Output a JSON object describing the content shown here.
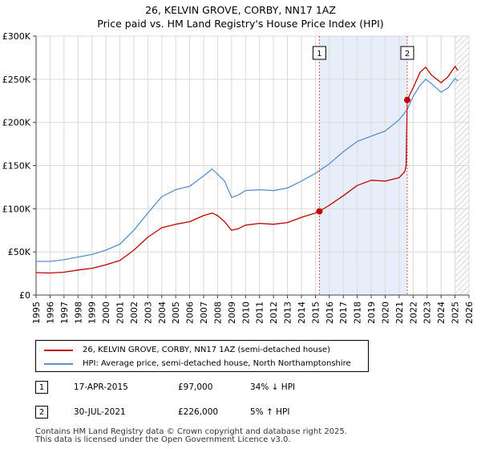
{
  "header": {
    "title_line1": "26, KELVIN GROVE, CORBY, NN17 1AZ",
    "title_line2": "Price paid vs. HM Land Registry's House Price Index (HPI)"
  },
  "colors": {
    "price_line": "#c00000",
    "hpi_line": "#5b8fd0",
    "shade": "#e8eef9",
    "marker_line": "#d9534f",
    "hatch": "#bdbdbd"
  },
  "chart_data": {
    "type": "line",
    "title": "Price paid vs. HM Land Registry's House Price Index (HPI)",
    "xlabel": "",
    "ylabel": "",
    "xlim": [
      1995,
      2026
    ],
    "ylim": [
      0,
      300000
    ],
    "x_ticks": [
      1995,
      1996,
      1997,
      1998,
      1999,
      2000,
      2001,
      2002,
      2003,
      2004,
      2005,
      2006,
      2007,
      2008,
      2009,
      2010,
      2011,
      2012,
      2013,
      2014,
      2015,
      2016,
      2017,
      2018,
      2019,
      2020,
      2021,
      2022,
      2023,
      2024,
      2025,
      2026
    ],
    "y_ticks": [
      0,
      50000,
      100000,
      150000,
      200000,
      250000,
      300000
    ],
    "y_tick_labels": [
      "£0",
      "£50K",
      "£100K",
      "£150K",
      "£200K",
      "£250K",
      "£300K"
    ],
    "grid": true,
    "shaded_span": [
      2015.29,
      2021.58
    ],
    "hatched_from": 2025.0,
    "series": [
      {
        "name": "26, KELVIN GROVE, CORBY, NN17 1AZ (semi-detached house)",
        "color": "#c00000",
        "points": [
          [
            1995,
            26000
          ],
          [
            1996,
            25500
          ],
          [
            1997,
            26500
          ],
          [
            1998,
            29000
          ],
          [
            1999,
            31000
          ],
          [
            2000,
            35000
          ],
          [
            2001,
            40000
          ],
          [
            2002,
            52000
          ],
          [
            2003,
            67000
          ],
          [
            2004,
            78000
          ],
          [
            2005,
            82000
          ],
          [
            2006,
            85000
          ],
          [
            2007,
            92000
          ],
          [
            2007.6,
            95000
          ],
          [
            2008,
            92000
          ],
          [
            2008.5,
            85000
          ],
          [
            2009,
            75000
          ],
          [
            2009.5,
            77000
          ],
          [
            2010,
            81000
          ],
          [
            2011,
            83000
          ],
          [
            2012,
            82000
          ],
          [
            2013,
            84000
          ],
          [
            2014,
            90000
          ],
          [
            2015,
            95000
          ],
          [
            2015.29,
            97000
          ],
          [
            2016,
            104000
          ],
          [
            2017,
            115000
          ],
          [
            2018,
            127000
          ],
          [
            2019,
            133000
          ],
          [
            2020,
            132000
          ],
          [
            2021,
            136000
          ],
          [
            2021.4,
            143000
          ],
          [
            2021.5,
            150000
          ],
          [
            2021.58,
            226000
          ],
          [
            2022,
            240000
          ],
          [
            2022.5,
            258000
          ],
          [
            2022.9,
            264000
          ],
          [
            2023.3,
            255000
          ],
          [
            2024,
            246000
          ],
          [
            2024.5,
            253000
          ],
          [
            2025,
            265000
          ],
          [
            2025.2,
            260000
          ]
        ]
      },
      {
        "name": "HPI: Average price, semi-detached house, North Northamptonshire",
        "color": "#5b8fd0",
        "points": [
          [
            1995,
            39000
          ],
          [
            1996,
            39000
          ],
          [
            1997,
            41000
          ],
          [
            1998,
            44000
          ],
          [
            1999,
            47000
          ],
          [
            2000,
            52000
          ],
          [
            2001,
            59000
          ],
          [
            2002,
            75000
          ],
          [
            2003,
            95000
          ],
          [
            2004,
            114000
          ],
          [
            2005,
            122000
          ],
          [
            2006,
            126000
          ],
          [
            2007,
            138000
          ],
          [
            2007.6,
            146000
          ],
          [
            2008,
            140000
          ],
          [
            2008.5,
            132000
          ],
          [
            2009,
            113000
          ],
          [
            2009.5,
            116000
          ],
          [
            2010,
            121000
          ],
          [
            2011,
            122000
          ],
          [
            2012,
            121000
          ],
          [
            2013,
            124000
          ],
          [
            2014,
            132000
          ],
          [
            2015,
            141000
          ],
          [
            2016,
            152000
          ],
          [
            2017,
            166000
          ],
          [
            2018,
            178000
          ],
          [
            2019,
            184000
          ],
          [
            2020,
            190000
          ],
          [
            2021,
            203000
          ],
          [
            2021.58,
            215000
          ],
          [
            2022,
            230000
          ],
          [
            2022.5,
            243000
          ],
          [
            2022.9,
            250000
          ],
          [
            2023.3,
            245000
          ],
          [
            2024,
            235000
          ],
          [
            2024.5,
            240000
          ],
          [
            2025,
            251000
          ],
          [
            2025.2,
            248000
          ]
        ]
      }
    ],
    "annotations": [
      {
        "label": "1",
        "x": 2015.29,
        "y": 97000
      },
      {
        "label": "2",
        "x": 2021.58,
        "y": 226000
      }
    ]
  },
  "legend": {
    "price_label": "26, KELVIN GROVE, CORBY, NN17 1AZ (semi-detached house)",
    "hpi_label": "HPI: Average price, semi-detached house, North Northamptonshire"
  },
  "transactions": [
    {
      "num": "1",
      "date": "17-APR-2015",
      "price": "£97,000",
      "hpi": "34% ↓ HPI"
    },
    {
      "num": "2",
      "date": "30-JUL-2021",
      "price": "£226,000",
      "hpi": "5% ↑ HPI"
    }
  ],
  "footer": {
    "line1": "Contains HM Land Registry data © Crown copyright and database right 2025.",
    "line2": "This data is licensed under the Open Government Licence v3.0."
  }
}
